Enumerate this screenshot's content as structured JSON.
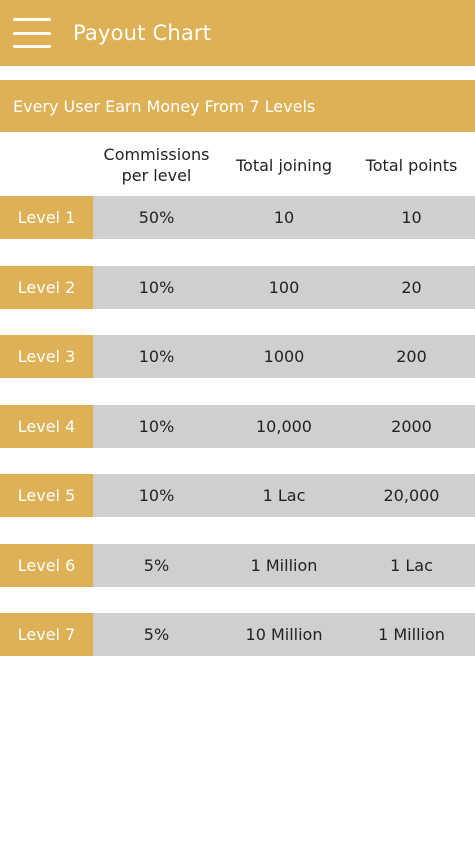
{
  "app_bar": {
    "title": "Payout Chart",
    "menu_icon": "hamburger-menu-icon"
  },
  "banner": {
    "text": "Every User Earn Money From 7 Levels"
  },
  "table": {
    "headers": [
      "Commissions\nper level",
      "Total joining",
      "Total points"
    ],
    "rows": [
      {
        "level": "Level 1",
        "commission": "50%",
        "joining": "10",
        "points": "10"
      },
      {
        "level": "Level 2",
        "commission": "10%",
        "joining": "100",
        "points": "20"
      },
      {
        "level": "Level 3",
        "commission": "10%",
        "joining": "1000",
        "points": "200"
      },
      {
        "level": "Level 4",
        "commission": "10%",
        "joining": "10,000",
        "points": "2000"
      },
      {
        "level": "Level 5",
        "commission": "10%",
        "joining": "1 Lac",
        "points": "20,000"
      },
      {
        "level": "Level 6",
        "commission": "5%",
        "joining": "1 Million",
        "points": "1 Lac"
      },
      {
        "level": "Level 7",
        "commission": "5%",
        "joining": "10 Million",
        "points": "1 Million"
      }
    ]
  },
  "colors": {
    "accent": "#dfb157",
    "row_background": "#cfcfcf",
    "text": "#222222"
  }
}
